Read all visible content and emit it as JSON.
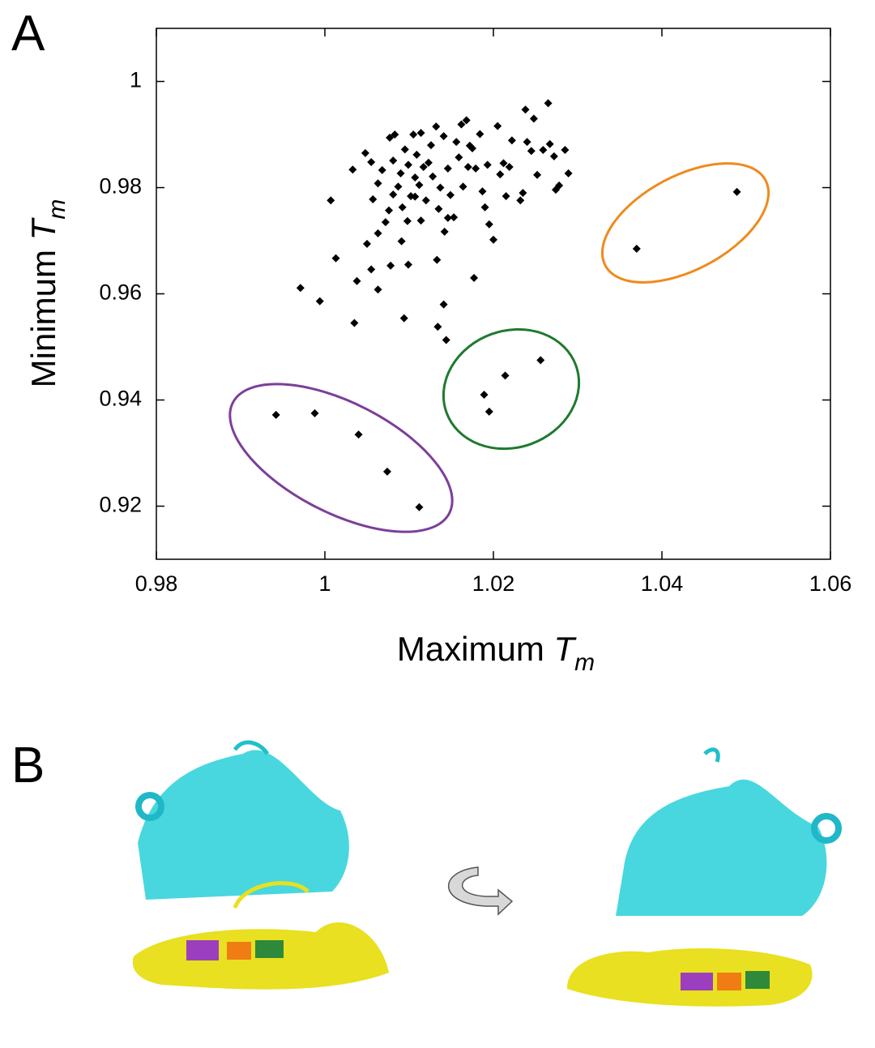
{
  "panel_a_label": "A",
  "panel_b_label": "B",
  "chart_data": {
    "type": "scatter",
    "x_label": [
      "Maximum ",
      "T",
      "m"
    ],
    "y_label": [
      "Minimum ",
      "T",
      "m"
    ],
    "color": "#000000",
    "xlim": [
      0.98,
      1.06
    ],
    "ylim": [
      0.91,
      1.01
    ],
    "xticks": [
      0.98,
      1,
      1.02,
      1.04,
      1.06
    ],
    "yticks": [
      0.92,
      0.94,
      0.96,
      0.98,
      1
    ],
    "x": [
      0.9942,
      0.9988,
      1.004,
      1.0074,
      1.0112,
      1.0189,
      1.0195,
      1.0214,
      1.0256,
      1.037,
      1.0489,
      0.9971,
      0.9994,
      1.0035,
      1.0094,
      1.0134,
      1.0144,
      1.0141,
      1.0007,
      1.0013,
      1.0038,
      1.0055,
      1.0063,
      1.0063,
      1.005,
      1.0078,
      1.0091,
      1.0099,
      1.0133,
      1.0177,
      1.0033,
      1.0048,
      1.0057,
      1.0063,
      1.0068,
      1.0072,
      1.0076,
      1.0081,
      1.0081,
      1.0087,
      1.009,
      1.0092,
      1.0095,
      1.0099,
      1.0102,
      1.0105,
      1.0107,
      1.0109,
      1.0112,
      1.0114,
      1.0117,
      1.012,
      1.0126,
      1.0128,
      1.0132,
      1.0135,
      1.0137,
      1.0141,
      1.0142,
      1.0146,
      1.0149,
      1.0153,
      1.0156,
      1.0159,
      1.0162,
      1.0164,
      1.0168,
      1.017,
      1.0175,
      1.0179,
      1.0184,
      1.0187,
      1.019,
      1.0193,
      1.0195,
      1.02,
      1.0205,
      1.0208,
      1.0212,
      1.0215,
      1.0219,
      1.0222,
      1.0232,
      1.0235,
      1.0238,
      1.024,
      1.0245,
      1.0248,
      1.0252,
      1.0259,
      1.0265,
      1.0267,
      1.0272,
      1.0274,
      1.0278,
      1.0285,
      1.0289,
      1.0077,
      1.0083,
      1.0123,
      1.0172,
      1.0055,
      1.0107,
      1.0146,
      1.0114,
      1.0098
    ],
    "y": [
      0.9372,
      0.9375,
      0.9335,
      0.9265,
      0.9198,
      0.941,
      0.9378,
      0.9446,
      0.9475,
      0.9685,
      0.9792,
      0.9611,
      0.9586,
      0.9545,
      0.9554,
      0.9538,
      0.9513,
      0.958,
      0.9776,
      0.9667,
      0.9624,
      0.9646,
      0.9608,
      0.9714,
      0.9694,
      0.9653,
      0.9699,
      0.9655,
      0.9664,
      0.963,
      0.9834,
      0.9865,
      0.9778,
      0.9808,
      0.9833,
      0.9735,
      0.9757,
      0.9787,
      0.9851,
      0.9802,
      0.9827,
      0.9763,
      0.9872,
      0.9843,
      0.9784,
      0.99,
      0.9819,
      0.9862,
      0.9805,
      0.9738,
      0.9839,
      0.9776,
      0.988,
      0.9821,
      0.9915,
      0.976,
      0.98,
      0.9897,
      0.9717,
      0.9836,
      0.9786,
      0.9744,
      0.9886,
      0.9857,
      0.9919,
      0.9802,
      0.9927,
      0.9839,
      0.9874,
      0.9836,
      0.9901,
      0.9793,
      0.9763,
      0.9843,
      0.9731,
      0.9702,
      0.9916,
      0.9825,
      0.9846,
      0.9784,
      0.9839,
      0.9889,
      0.9776,
      0.979,
      0.9947,
      0.9886,
      0.9869,
      0.993,
      0.9824,
      0.9871,
      0.9959,
      0.9882,
      0.9859,
      0.9796,
      0.9804,
      0.9871,
      0.9827,
      0.9894,
      0.99,
      0.9847,
      0.9879,
      0.9848,
      0.9783,
      0.9743,
      0.9903,
      0.9737
    ]
  }
}
